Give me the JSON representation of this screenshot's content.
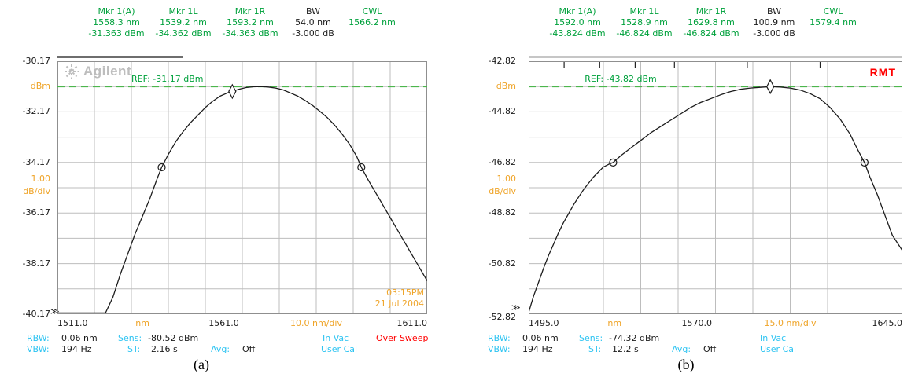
{
  "colors": {
    "green": "#00A13C",
    "green_line": "#4CB64C",
    "amber": "#EFA428",
    "cyan": "#2EC4F2",
    "red": "#FF0000",
    "grid": "#BDBDBD",
    "border": "#8F8F8F",
    "trace": "#1C1C1C",
    "logo_gray": "#BDBDBD"
  },
  "panels": [
    {
      "caption": "(a)",
      "brand": "Agilent",
      "ref_label": "REF: -31.17 dBm",
      "timestamp": {
        "time": "03:15PM",
        "date": "21 Jul 2004"
      },
      "header": {
        "cols": [
          {
            "label": "Mkr 1(A)",
            "wavelength": "1558.3 nm",
            "power": "-31.363 dBm"
          },
          {
            "label": "Mkr 1L",
            "wavelength": "1539.2 nm",
            "power": "-34.362 dBm"
          },
          {
            "label": "Mkr 1R",
            "wavelength": "1593.2 nm",
            "power": "-34.363 dBm"
          },
          {
            "label": "BW",
            "wavelength": "54.0 nm",
            "power": "-3.000 dB"
          },
          {
            "label": "CWL",
            "wavelength": "1566.2 nm",
            "power": ""
          }
        ]
      },
      "status": {
        "rbw_label": "RBW:",
        "rbw_value": "0.06 nm",
        "sens_label": "Sens:",
        "sens_value": "-80.52 dBm",
        "medium": "In Vac",
        "warning": "Over Sweep",
        "vbw_label": "VBW:",
        "vbw_value": "194 Hz",
        "st_label": "ST:",
        "st_value": "2.16 s",
        "avg_label": "Avg:",
        "avg_value": "Off",
        "cal": "User Cal"
      }
    },
    {
      "caption": "(b)",
      "rmt": "RMT",
      "ref_label": "REF: -43.82 dBm",
      "header": {
        "cols": [
          {
            "label": "Mkr 1(A)",
            "wavelength": "1592.0 nm",
            "power": "-43.824 dBm"
          },
          {
            "label": "Mkr 1L",
            "wavelength": "1528.9 nm",
            "power": "-46.824 dBm"
          },
          {
            "label": "Mkr 1R",
            "wavelength": "1629.8 nm",
            "power": "-46.824 dBm"
          },
          {
            "label": "BW",
            "wavelength": "100.9 nm",
            "power": "-3.000 dB"
          },
          {
            "label": "CWL",
            "wavelength": "1579.4 nm",
            "power": ""
          }
        ]
      },
      "status": {
        "rbw_label": "RBW:",
        "rbw_value": "0.06 nm",
        "sens_label": "Sens:",
        "sens_value": "-74.32 dBm",
        "medium": "In Vac",
        "vbw_label": "VBW:",
        "vbw_value": "194 Hz",
        "st_label": "ST:",
        "st_value": "12.2 s",
        "avg_label": "Avg:",
        "avg_value": "Off",
        "cal": "User Cal"
      }
    }
  ],
  "chart_data": [
    {
      "type": "line",
      "title": "Optical spectrum, panel (a)",
      "x_unit": "nm",
      "x_div_label": "10.0 nm/div",
      "xlim": [
        1511.0,
        1611.0
      ],
      "x_ticks": [
        "1511.0",
        "1561.0",
        "1611.0"
      ],
      "ylim": [
        -40.17,
        -30.17
      ],
      "y_ticks": [
        "-30.17",
        "-32.17",
        "-34.17",
        "-36.17",
        "-38.17",
        "-40.17"
      ],
      "y_unit": "dBm",
      "y_scale_per_div": [
        "1.00",
        "dB/div"
      ],
      "y_overrange_symbol": "≫",
      "ref_level_dbm": -31.17,
      "grid_divs": [
        10,
        10
      ],
      "legend": "off",
      "sweep_progress": 0.34,
      "top_ticks": [],
      "markers": {
        "mkr1": {
          "nm": 1558.3,
          "dbm": -31.363
        },
        "left": {
          "nm": 1539.2,
          "dbm": -34.362
        },
        "right": {
          "nm": 1593.2,
          "dbm": -34.363
        }
      },
      "trace": [
        [
          1511,
          -40.12
        ],
        [
          1524,
          -40.12
        ],
        [
          1526,
          -39.5
        ],
        [
          1528,
          -38.6
        ],
        [
          1530,
          -37.8
        ],
        [
          1532,
          -37.0
        ],
        [
          1534,
          -36.3
        ],
        [
          1536,
          -35.6
        ],
        [
          1538,
          -34.8
        ],
        [
          1539.2,
          -34.362
        ],
        [
          1541,
          -33.85
        ],
        [
          1543,
          -33.35
        ],
        [
          1545,
          -32.95
        ],
        [
          1547,
          -32.6
        ],
        [
          1549,
          -32.3
        ],
        [
          1551,
          -32.0
        ],
        [
          1553,
          -31.75
        ],
        [
          1555,
          -31.55
        ],
        [
          1557,
          -31.42
        ],
        [
          1558.3,
          -31.363
        ],
        [
          1560,
          -31.28
        ],
        [
          1562,
          -31.21
        ],
        [
          1564,
          -31.18
        ],
        [
          1566,
          -31.17
        ],
        [
          1568,
          -31.19
        ],
        [
          1570,
          -31.23
        ],
        [
          1572,
          -31.3
        ],
        [
          1574,
          -31.42
        ],
        [
          1576,
          -31.55
        ],
        [
          1578,
          -31.72
        ],
        [
          1580,
          -31.92
        ],
        [
          1582,
          -32.15
        ],
        [
          1584,
          -32.4
        ],
        [
          1586,
          -32.7
        ],
        [
          1588,
          -33.05
        ],
        [
          1590,
          -33.45
        ],
        [
          1592,
          -33.95
        ],
        [
          1593.2,
          -34.363
        ],
        [
          1595,
          -34.85
        ],
        [
          1597,
          -35.35
        ],
        [
          1599,
          -35.85
        ],
        [
          1601,
          -36.35
        ],
        [
          1603,
          -36.85
        ],
        [
          1605,
          -37.35
        ],
        [
          1607,
          -37.85
        ],
        [
          1609,
          -38.35
        ],
        [
          1611,
          -38.85
        ]
      ]
    },
    {
      "type": "line",
      "title": "Optical spectrum, panel (b)",
      "x_unit": "nm",
      "x_div_label": "15.0 nm/div",
      "xlim": [
        1495.0,
        1645.0
      ],
      "x_ticks": [
        "1495.0",
        "1570.0",
        "1645.0"
      ],
      "ylim": [
        -52.82,
        -42.82
      ],
      "y_ticks": [
        "-42.82",
        "-44.82",
        "-46.82",
        "-48.82",
        "-50.82",
        "-52.82"
      ],
      "y_unit": "dBm",
      "y_scale_per_div": [
        "1.00",
        "dB/div"
      ],
      "y_overrange_symbol": "≫",
      "ref_level_dbm": -43.82,
      "grid_divs": [
        10,
        10
      ],
      "legend": "off",
      "sweep_progress": 1.0,
      "top_ticks": [
        0.095,
        0.19,
        0.285,
        0.39,
        0.585,
        0.78
      ],
      "markers": {
        "mkr1": {
          "nm": 1592.0,
          "dbm": -43.824
        },
        "left": {
          "nm": 1528.9,
          "dbm": -46.824
        },
        "right": {
          "nm": 1629.8,
          "dbm": -46.824
        }
      },
      "trace": [
        [
          1495,
          -52.75
        ],
        [
          1497,
          -52.1
        ],
        [
          1499,
          -51.55
        ],
        [
          1501,
          -51.0
        ],
        [
          1503,
          -50.5
        ],
        [
          1505,
          -50.05
        ],
        [
          1507,
          -49.6
        ],
        [
          1509,
          -49.2
        ],
        [
          1511,
          -48.85
        ],
        [
          1513,
          -48.5
        ],
        [
          1515,
          -48.2
        ],
        [
          1517,
          -47.9
        ],
        [
          1519,
          -47.65
        ],
        [
          1521,
          -47.4
        ],
        [
          1523,
          -47.2
        ],
        [
          1525,
          -47.0
        ],
        [
          1527,
          -46.9
        ],
        [
          1528.9,
          -46.824
        ],
        [
          1532,
          -46.55
        ],
        [
          1536,
          -46.25
        ],
        [
          1540,
          -45.95
        ],
        [
          1544,
          -45.65
        ],
        [
          1548,
          -45.4
        ],
        [
          1552,
          -45.15
        ],
        [
          1556,
          -44.9
        ],
        [
          1560,
          -44.65
        ],
        [
          1564,
          -44.45
        ],
        [
          1568,
          -44.3
        ],
        [
          1572,
          -44.15
        ],
        [
          1576,
          -44.02
        ],
        [
          1580,
          -43.93
        ],
        [
          1584,
          -43.88
        ],
        [
          1588,
          -43.85
        ],
        [
          1592,
          -43.824
        ],
        [
          1596,
          -43.84
        ],
        [
          1600,
          -43.88
        ],
        [
          1604,
          -43.96
        ],
        [
          1608,
          -44.1
        ],
        [
          1612,
          -44.3
        ],
        [
          1616,
          -44.65
        ],
        [
          1620,
          -45.1
        ],
        [
          1624,
          -45.7
        ],
        [
          1627,
          -46.3
        ],
        [
          1629.8,
          -46.824
        ],
        [
          1632,
          -47.4
        ],
        [
          1635,
          -48.1
        ],
        [
          1638,
          -48.9
        ],
        [
          1641,
          -49.7
        ],
        [
          1645,
          -50.3
        ]
      ]
    }
  ]
}
